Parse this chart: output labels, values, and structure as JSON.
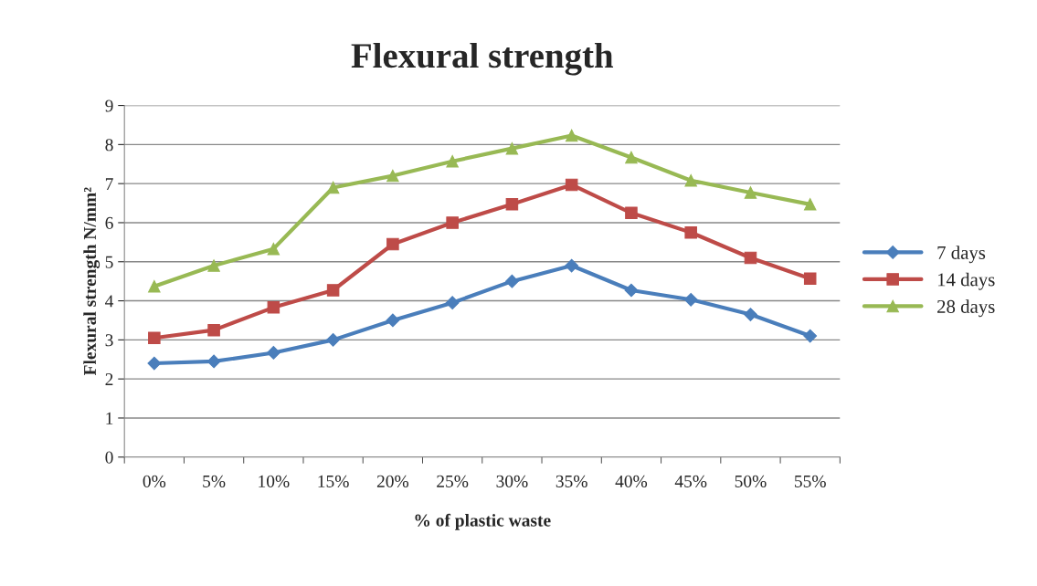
{
  "chart_data": {
    "type": "line",
    "title": "Flexural strength",
    "xlabel": "% of plastic waste",
    "ylabel": "Flexural strength N/mm²",
    "categories": [
      "0%",
      "5%",
      "10%",
      "15%",
      "20%",
      "25%",
      "30%",
      "35%",
      "40%",
      "45%",
      "50%",
      "55%"
    ],
    "series": [
      {
        "name": "7 days",
        "color": "#4a7ebb",
        "marker": "diamond",
        "values": [
          2.4,
          2.45,
          2.67,
          3.0,
          3.5,
          3.95,
          4.5,
          4.9,
          4.27,
          4.03,
          3.65,
          3.1
        ]
      },
      {
        "name": "14 days",
        "color": "#be4b48",
        "marker": "square",
        "values": [
          3.05,
          3.25,
          3.83,
          4.27,
          5.45,
          6.0,
          6.47,
          6.97,
          6.25,
          5.75,
          5.1,
          4.57
        ]
      },
      {
        "name": "28 days",
        "color": "#98b954",
        "marker": "triangle",
        "values": [
          4.37,
          4.9,
          5.33,
          6.9,
          7.2,
          7.57,
          7.9,
          8.23,
          7.67,
          7.08,
          6.77,
          6.47
        ]
      }
    ],
    "ylim": [
      0,
      9
    ],
    "yticks": [
      0,
      1,
      2,
      3,
      4,
      5,
      6,
      7,
      8,
      9
    ],
    "grid": "y",
    "legend": "right"
  }
}
